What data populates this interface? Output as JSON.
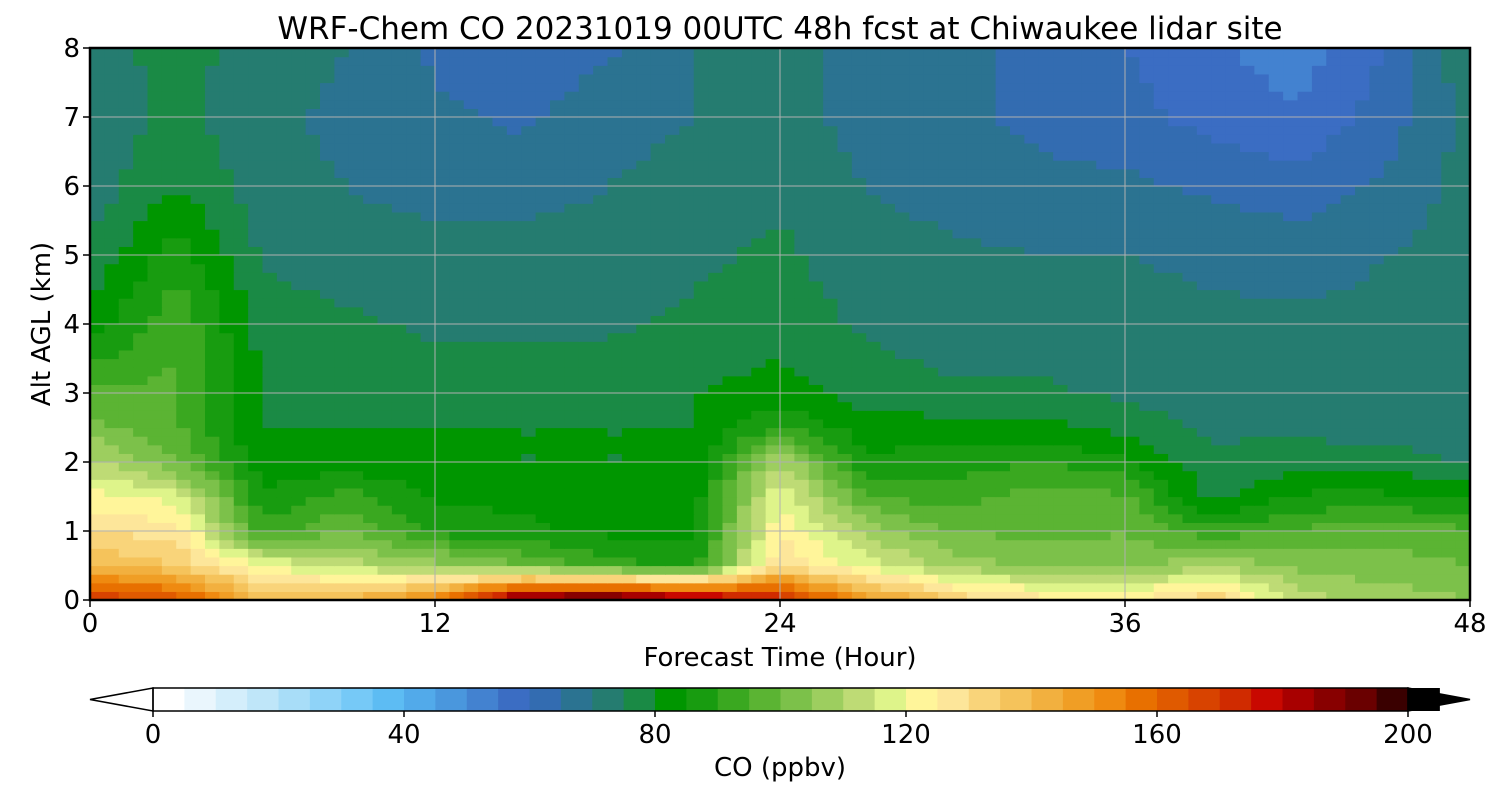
{
  "chart_data": {
    "type": "heatmap",
    "title": "WRF-Chem CO  20231019 00UTC 48h fcst at Chiwaukee lidar site",
    "xlabel": "Forecast Time (Hour)",
    "ylabel": "Alt AGL (km)",
    "xlim": [
      0,
      48
    ],
    "ylim": [
      0,
      8
    ],
    "xticks": [
      0,
      12,
      24,
      36,
      48
    ],
    "yticks": [
      0,
      1,
      2,
      3,
      4,
      5,
      6,
      7,
      8
    ],
    "grid": true,
    "colorbar": {
      "label": "CO  (ppbv)",
      "min": 0,
      "max": 200,
      "step": 5,
      "ticks": [
        0,
        40,
        80,
        120,
        160,
        200
      ],
      "extend": "both",
      "colors": [
        "#ffffff",
        "#eaf6fd",
        "#d4eefb",
        "#bfe6f9",
        "#a8ddf8",
        "#8fd3f8",
        "#76c9f7",
        "#5dbcf3",
        "#52aaea",
        "#4a97dd",
        "#4382d0",
        "#3b6dc3",
        "#336cb1",
        "#2b7391",
        "#257c70",
        "#1a8a45",
        "#009600",
        "#189c10",
        "#3aa820",
        "#5bb433",
        "#7cc14a",
        "#9dce5f",
        "#bedb75",
        "#def48a",
        "#fff59a",
        "#fde69a",
        "#f9d47a",
        "#f5c35b",
        "#f2b03f",
        "#f09e25",
        "#ef8a10",
        "#e87000",
        "#e05a00",
        "#d84300",
        "#d02b00",
        "#c80800",
        "#a80000",
        "#880000",
        "#6a0000",
        "#3a0000",
        "#000000"
      ]
    },
    "x": [
      0,
      3,
      6,
      9,
      12,
      15,
      18,
      21,
      24,
      27,
      30,
      33,
      36,
      39,
      42,
      45,
      48
    ],
    "y": [
      0,
      0.5,
      1,
      1.5,
      2,
      2.5,
      3,
      4,
      5,
      6,
      7,
      8
    ],
    "z": [
      [
        170,
        165,
        140,
        142,
        155,
        195,
        200,
        190,
        175,
        150,
        135,
        128,
        125,
        135,
        112,
        108,
        105
      ],
      [
        140,
        135,
        120,
        112,
        108,
        100,
        92,
        88,
        130,
        118,
        108,
        104,
        102,
        110,
        104,
        102,
        100
      ],
      [
        130,
        128,
        92,
        100,
        88,
        86,
        84,
        84,
        124,
        108,
        100,
        98,
        100,
        92,
        96,
        98,
        96
      ],
      [
        122,
        118,
        86,
        92,
        84,
        84,
        82,
        82,
        120,
        96,
        92,
        98,
        96,
        78,
        86,
        86,
        84
      ],
      [
        112,
        100,
        82,
        82,
        81,
        80,
        80,
        80,
        110,
        86,
        88,
        90,
        86,
        76,
        78,
        78,
        74
      ],
      [
        102,
        96,
        80,
        80,
        80,
        80,
        80,
        80,
        90,
        82,
        82,
        82,
        78,
        74,
        74,
        72,
        72
      ],
      [
        96,
        96,
        80,
        79,
        78,
        78,
        79,
        80,
        82,
        78,
        76,
        76,
        74,
        72,
        72,
        72,
        72
      ],
      [
        82,
        94,
        78,
        76,
        74,
        74,
        74,
        76,
        78,
        74,
        72,
        72,
        72,
        71,
        71,
        71,
        72
      ],
      [
        76,
        88,
        74,
        72,
        72,
        72,
        72,
        74,
        76,
        72,
        71,
        70,
        70,
        69,
        68,
        70,
        72
      ],
      [
        72,
        80,
        72,
        70,
        68,
        68,
        70,
        72,
        74,
        70,
        68,
        66,
        66,
        64,
        62,
        66,
        72
      ],
      [
        72,
        76,
        72,
        68,
        66,
        64,
        68,
        70,
        72,
        68,
        66,
        64,
        62,
        58,
        56,
        62,
        72
      ],
      [
        74,
        76,
        74,
        70,
        64,
        62,
        64,
        70,
        72,
        68,
        66,
        64,
        60,
        56,
        52,
        60,
        74
      ]
    ]
  }
}
